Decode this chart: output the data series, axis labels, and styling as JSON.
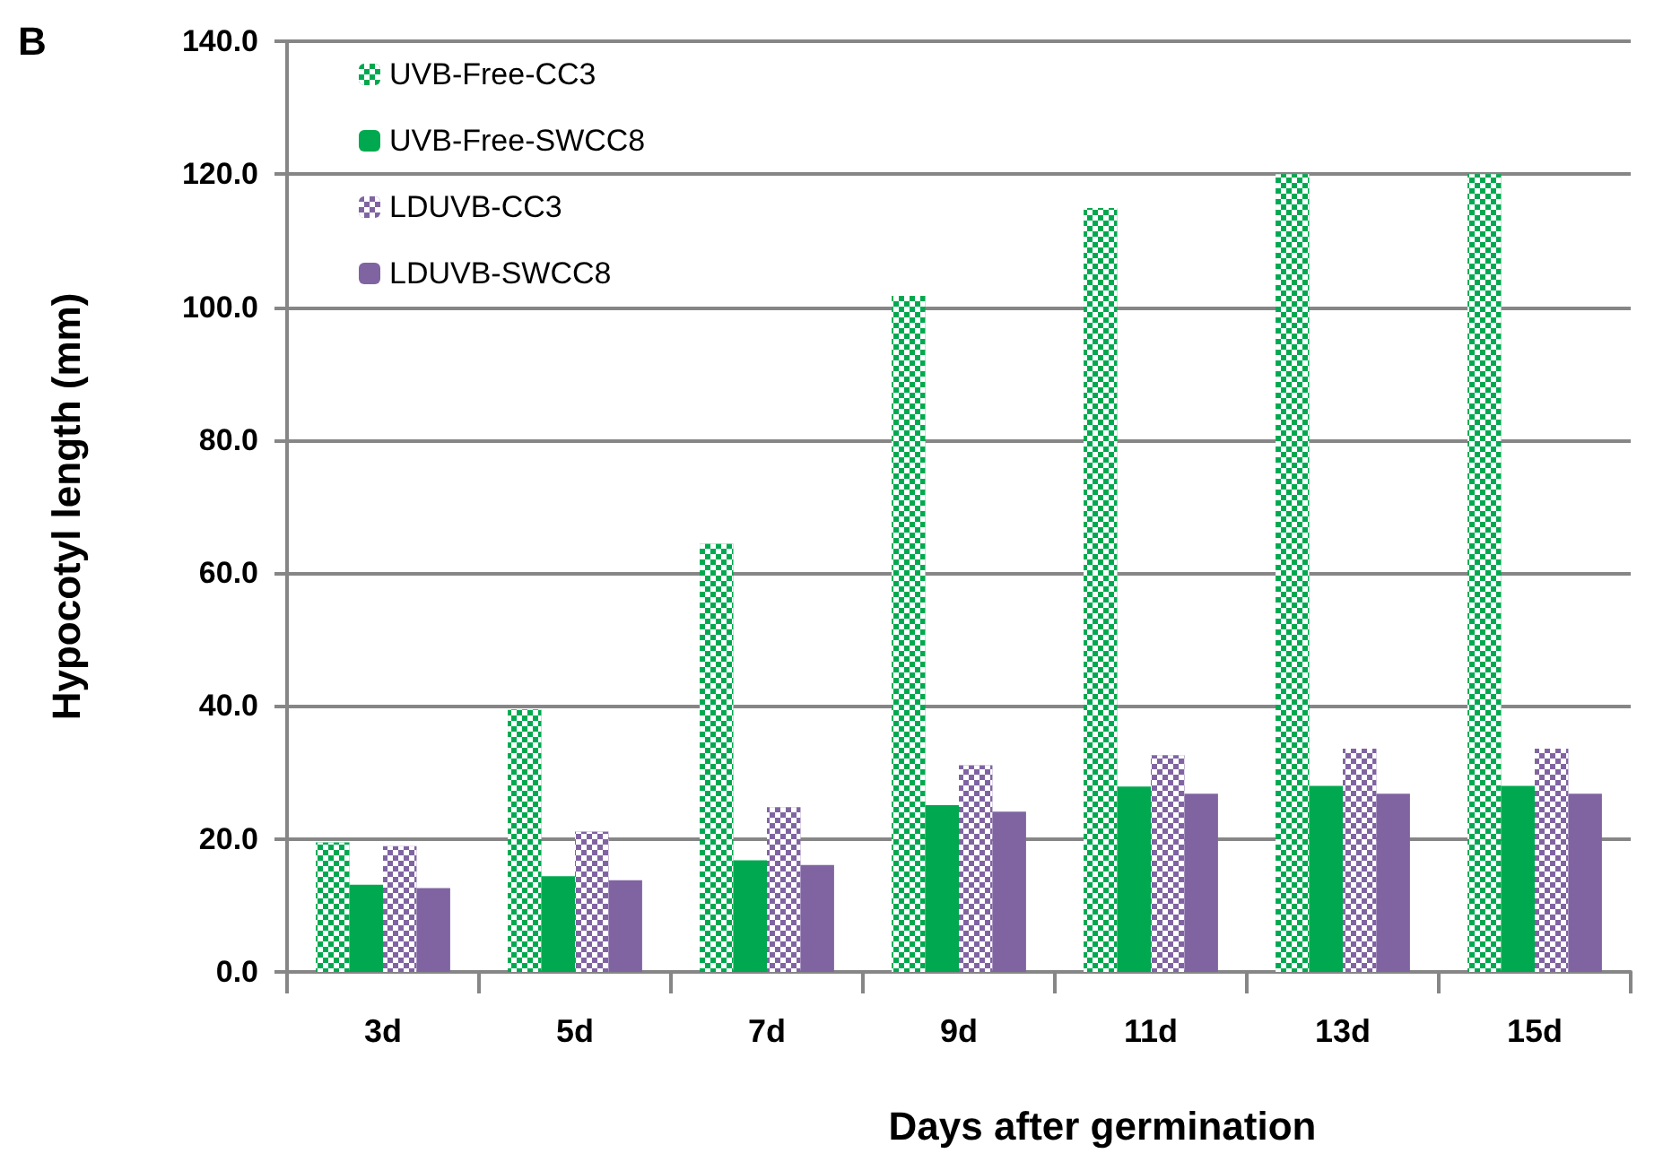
{
  "chart_data": {
    "type": "bar",
    "xlabel": "Days after germination",
    "ylabel": "Hypocotyl length (mm)",
    "annotations": [
      "B"
    ],
    "categories": [
      "3d",
      "5d",
      "7d",
      "9d",
      "11d",
      "13d",
      "15d"
    ],
    "series": [
      {
        "name": "UVB-Free-CC3",
        "color": "#00a94f",
        "values": [
          19.5,
          39.5,
          64.4,
          101.7,
          114.9,
          120.0,
          120.0
        ]
      },
      {
        "name": "UVB-Free-SWCC8",
        "color": "#00a94f",
        "values": [
          13.1,
          14.4,
          16.8,
          25.1,
          27.9,
          28.0,
          28.0
        ]
      },
      {
        "name": "LDUVB-CC3",
        "color": "#8064a2",
        "values": [
          18.9,
          21.1,
          24.8,
          31.1,
          32.6,
          33.6,
          33.6
        ]
      },
      {
        "name": "LDUVB-SWCC8",
        "color": "#8064a2",
        "values": [
          12.6,
          13.8,
          16.1,
          24.1,
          26.8,
          26.8,
          26.8
        ]
      }
    ],
    "ylim": [
      0,
      140
    ],
    "yticks": [
      {
        "value": 0,
        "label": "0.0"
      },
      {
        "value": 20,
        "label": "20.0"
      },
      {
        "value": 40,
        "label": "40.0"
      },
      {
        "value": 60,
        "label": "60.0"
      },
      {
        "value": 80,
        "label": "80.0"
      },
      {
        "value": 100,
        "label": "100.0"
      },
      {
        "value": 120,
        "label": "120.0"
      },
      {
        "value": 140,
        "label": "140.0"
      }
    ],
    "grid": "y",
    "legend": "top left"
  }
}
